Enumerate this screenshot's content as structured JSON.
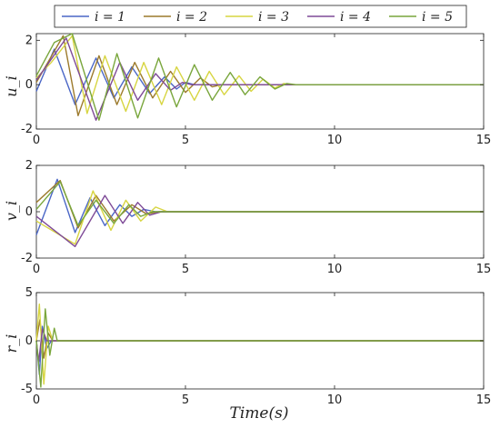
{
  "colors": {
    "i=1": "#4a66c6",
    "i=2": "#9c7a2c",
    "i=3": "#d7d541",
    "i=4": "#7e4a97",
    "i=5": "#79a63c"
  },
  "chart_data": [
    {
      "type": "line",
      "title": "",
      "xlabel": "",
      "ylabel": "u_i",
      "xlim": [
        0,
        15
      ],
      "ylim": [
        -2,
        2.3
      ],
      "xticks": [
        "0",
        "5",
        "10",
        "15"
      ],
      "yticks": [
        "-2",
        "0",
        "2"
      ],
      "grid": false,
      "legend": "top-center",
      "series": [
        {
          "name": "i = 1",
          "color": "#4a66c6",
          "x": [
            0,
            0.6,
            1.3,
            2.0,
            2.6,
            3.2,
            3.8,
            4.3,
            4.7,
            5.0,
            5.3,
            15
          ],
          "y": [
            -0.3,
            1.6,
            -0.9,
            1.2,
            -0.6,
            0.8,
            -0.4,
            0.35,
            -0.2,
            0.1,
            0,
            0
          ]
        },
        {
          "name": "i = 2",
          "color": "#9c7a2c",
          "x": [
            0,
            0.9,
            1.4,
            2.1,
            2.7,
            3.3,
            3.9,
            4.5,
            5.0,
            5.5,
            5.9,
            6.2,
            15
          ],
          "y": [
            0.1,
            2.2,
            -1.4,
            1.3,
            -0.9,
            1.0,
            -0.6,
            0.6,
            -0.35,
            0.3,
            -0.1,
            0,
            0
          ]
        },
        {
          "name": "i = 3",
          "color": "#d7d541",
          "x": [
            0,
            0.5,
            1.2,
            1.7,
            2.3,
            3.0,
            3.6,
            4.2,
            4.7,
            5.3,
            5.8,
            6.3,
            6.8,
            7.2,
            7.6,
            8.0,
            8.3,
            8.6,
            15
          ],
          "y": [
            0.3,
            1.0,
            2.2,
            -1.3,
            1.3,
            -1.2,
            1.0,
            -0.9,
            0.8,
            -0.7,
            0.6,
            -0.45,
            0.4,
            -0.3,
            0.25,
            -0.15,
            0.05,
            0,
            0
          ]
        },
        {
          "name": "i = 4",
          "color": "#7e4a97",
          "x": [
            0,
            1.0,
            2.0,
            2.8,
            3.4,
            4.0,
            4.5,
            4.9,
            5.2,
            15
          ],
          "y": [
            0.2,
            2.1,
            -1.6,
            1.0,
            -0.7,
            0.5,
            -0.25,
            0.1,
            0,
            0
          ]
        },
        {
          "name": "i = 5",
          "color": "#79a63c",
          "x": [
            0,
            0.6,
            1.2,
            2.1,
            2.7,
            3.4,
            4.1,
            4.7,
            5.3,
            5.9,
            6.5,
            7.0,
            7.5,
            8.0,
            8.4,
            8.7,
            15
          ],
          "y": [
            0.4,
            1.9,
            2.3,
            -1.6,
            1.4,
            -1.5,
            1.2,
            -1.0,
            0.9,
            -0.7,
            0.55,
            -0.45,
            0.35,
            -0.2,
            0.05,
            0,
            0
          ]
        }
      ]
    },
    {
      "type": "line",
      "title": "",
      "xlabel": "",
      "ylabel": "v_i",
      "xlim": [
        0,
        15
      ],
      "ylim": [
        -2,
        2
      ],
      "xticks": [
        "0",
        "5",
        "10",
        "15"
      ],
      "yticks": [
        "-2",
        "0",
        "2"
      ],
      "grid": false,
      "series": [
        {
          "name": "i = 1",
          "color": "#4a66c6",
          "x": [
            0,
            0.7,
            1.3,
            1.8,
            2.3,
            2.8,
            3.2,
            3.6,
            4.0,
            15
          ],
          "y": [
            -1.0,
            1.4,
            -0.9,
            0.6,
            -0.6,
            0.3,
            -0.2,
            0.1,
            0,
            0
          ]
        },
        {
          "name": "i = 2",
          "color": "#9c7a2c",
          "x": [
            0,
            0.8,
            1.4,
            2.0,
            2.6,
            3.2,
            3.7,
            4.1,
            15
          ],
          "y": [
            0.4,
            1.35,
            -0.7,
            0.7,
            -0.4,
            0.3,
            -0.1,
            0,
            0
          ]
        },
        {
          "name": "i = 3",
          "color": "#d7d541",
          "x": [
            0,
            1.3,
            1.9,
            2.5,
            3.0,
            3.5,
            4.0,
            4.4,
            15
          ],
          "y": [
            -0.4,
            -1.4,
            0.9,
            -0.8,
            0.5,
            -0.4,
            0.2,
            0,
            0
          ]
        },
        {
          "name": "i = 4",
          "color": "#7e4a97",
          "x": [
            0,
            1.3,
            2.3,
            2.9,
            3.4,
            3.8,
            4.2,
            15
          ],
          "y": [
            -0.2,
            -1.5,
            0.7,
            -0.5,
            0.4,
            -0.15,
            0,
            0
          ]
        },
        {
          "name": "i = 5",
          "color": "#79a63c",
          "x": [
            0,
            0.8,
            1.4,
            2.0,
            2.6,
            3.1,
            3.5,
            3.9,
            15
          ],
          "y": [
            0.1,
            1.3,
            -0.6,
            0.5,
            -0.5,
            0.3,
            -0.2,
            0,
            0
          ]
        }
      ]
    },
    {
      "type": "line",
      "title": "",
      "xlabel": "Time(s)",
      "ylabel": "r_i",
      "xlim": [
        0,
        15
      ],
      "ylim": [
        -5,
        5
      ],
      "xticks": [
        "0",
        "5",
        "10",
        "15"
      ],
      "yticks": [
        "-5",
        "0",
        "5"
      ],
      "grid": false,
      "series": [
        {
          "name": "i = 1",
          "color": "#4a66c6",
          "x": [
            0,
            0.1,
            0.2,
            0.35,
            0.5,
            15
          ],
          "y": [
            0,
            -3.5,
            1.5,
            -0.8,
            0,
            0
          ]
        },
        {
          "name": "i = 2",
          "color": "#9c7a2c",
          "x": [
            0,
            0.12,
            0.25,
            0.4,
            0.55,
            15
          ],
          "y": [
            0,
            2.2,
            -1.8,
            0.8,
            0,
            0
          ]
        },
        {
          "name": "i = 3",
          "color": "#d7d541",
          "x": [
            0,
            0.1,
            0.25,
            0.4,
            0.55,
            15
          ],
          "y": [
            0,
            3.8,
            -4.5,
            1.5,
            0,
            0
          ]
        },
        {
          "name": "i = 4",
          "color": "#7e4a97",
          "x": [
            0,
            0.08,
            0.2,
            0.35,
            15
          ],
          "y": [
            0,
            -2.2,
            1.2,
            0,
            0
          ]
        },
        {
          "name": "i = 5",
          "color": "#79a63c",
          "x": [
            0,
            0.15,
            0.3,
            0.45,
            0.6,
            0.7,
            15
          ],
          "y": [
            0,
            -4.8,
            3.3,
            -1.5,
            1.3,
            0,
            0
          ]
        }
      ]
    }
  ],
  "legend_labels": [
    "i = 1",
    "i = 2",
    "i = 3",
    "i = 4",
    "i = 5"
  ]
}
